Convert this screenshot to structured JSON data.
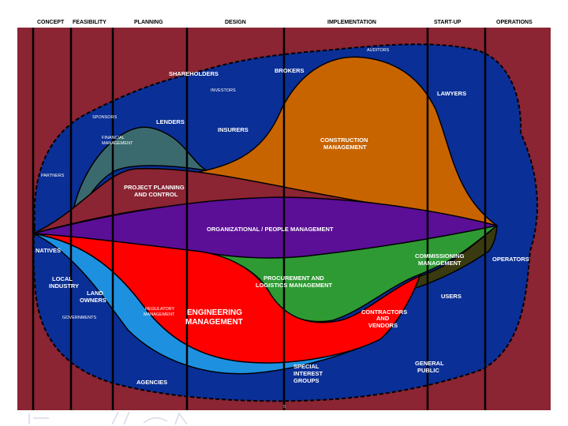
{
  "phases": [
    "CONCEPT",
    "FEASIBILITY",
    "PLANNING",
    "DESIGN",
    "IMPLEMENTATION",
    "START-UP",
    "OPERATIONS"
  ],
  "labels": {
    "auditors": "AUDITORS",
    "shareholders": "SHAREHOLDERS",
    "brokers": "BROKERS",
    "investors": "INVESTORS",
    "lawyers": "LAWYERS",
    "sponsors": "SPONSORS",
    "lenders": "LENDERS",
    "insurers": "INSURERS",
    "financial_1": "FINANCIAL",
    "financial_2": "MANAGEMENT",
    "construction_1": "CONSTRUCTION",
    "construction_2": "MANAGEMENT",
    "partners": "PARTNERS",
    "project_1": "PROJECT PLANNING",
    "project_2": "AND CONTROL",
    "organizational": "ORGANIZATIONAL / PEOPLE MANAGEMENT",
    "natives": "NATIVES",
    "commissioning_1": "COMMISSIONING",
    "commissioning_2": "MANAGEMENT",
    "operators": "OPERATORS",
    "local_1": "LOCAL",
    "local_2": "INDUSTRY",
    "procurement_1": "PROCUREMENT AND",
    "procurement_2": "LOGISTICS MANAGEMENT",
    "land_1": "LAND",
    "land_2": "OWNERS",
    "users": "USERS",
    "regulatory_1": "REGULATORY",
    "regulatory_2": "MANAGEMENT",
    "engineering_1": "ENGINEERING",
    "engineering_2": "MANAGEMENT",
    "contractors_1": "CONTRACTORS",
    "contractors_2": "AND",
    "contractors_3": "VENDORS",
    "governments": "GOVERNMENTS",
    "general_1": "GENERAL",
    "general_2": "PUBLIC",
    "special_1": "SPECIAL",
    "special_2": "INTEREST",
    "special_3": "GROUPS",
    "agencies": "AGENCIES",
    "page_number": "5"
  },
  "colors": {
    "background": "#8B2433",
    "stakeholder_blob": "#0A2F96",
    "construction": "#C86400",
    "financial": "#3A6A6E",
    "organizational": "#5A0F96",
    "procurement": "#2E9A33",
    "engineering": "#FF0000",
    "regulatory": "#1E90E0",
    "commissioning": "#3A3A10"
  }
}
